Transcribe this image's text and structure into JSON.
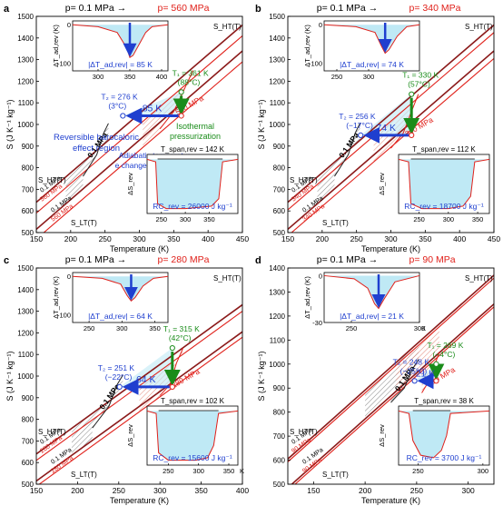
{
  "chart_data": [
    {
      "type": "line",
      "panel_label": "a",
      "title_left": "p= 0.1 MPa →",
      "title_right": "p= 560 MPa",
      "xlabel": "Temperature (K)",
      "ylabel": "S (J K⁻¹ kg⁻¹)",
      "xlim": [
        150,
        450
      ],
      "ylim": [
        500,
        1500
      ],
      "xticks": [
        "150",
        "200",
        "250",
        "300",
        "350",
        "400",
        "450"
      ],
      "yticks": [
        "500",
        "600",
        "700",
        "800",
        "900",
        "1000",
        "1100",
        "1200",
        "1300",
        "1400",
        "1500"
      ],
      "series": [
        {
          "name": "S_HT(T)",
          "pressure": "0.1 MPa",
          "x": [
            150,
            450
          ],
          "y": [
            640,
            1460
          ]
        },
        {
          "name": "S_LT(T)",
          "pressure": "0.1 MPa",
          "x": [
            150,
            450
          ],
          "y": [
            515,
            1340
          ]
        },
        {
          "name": "",
          "pressure": "560 MPa",
          "x": [
            150,
            450
          ],
          "y": [
            590,
            1410
          ]
        },
        {
          "name": "",
          "pressure": "560 MPa",
          "x": [
            150,
            450
          ],
          "y": [
            470,
            1290
          ]
        }
      ],
      "transition_low": {
        "label": "0.1 MPa",
        "x": [
          218,
          238,
          248,
          255
        ],
        "y": [
          760,
          860,
          960,
          1005
        ]
      },
      "transition_high": {
        "label": "560 MPa",
        "x": [
          330,
          350,
          365,
          378
        ],
        "y": [
          980,
          1060,
          1160,
          1250
        ]
      },
      "labels": {
        "region": "Reversible barocaloric effect region",
        "adiabatic": "Adiabatic temperature change (|ΔT_ad,rev|)",
        "isothermal": "Isothermal pressurization",
        "hot_label": "S_HT(T)",
        "cold_label": "S_LT(T)"
      },
      "points": {
        "T1": {
          "x": 361,
          "y": 1150,
          "label": "T₁ = 361 K",
          "sub": "(88°C)"
        },
        "T2": {
          "x": 276,
          "y": 1040,
          "label": "T₂ = 276 K",
          "sub": "(3°C)"
        },
        "base": {
          "x": 361,
          "y": 1040
        }
      },
      "arrow_label": "85 K",
      "inset_top": {
        "ylabel": "ΔT_ad,rev (K)",
        "yticks": [
          "0",
          "-100"
        ],
        "ylim": [
          -120,
          10
        ],
        "xticks": [
          "300",
          "350",
          "400"
        ],
        "xlim": [
          260,
          410
        ],
        "x": [
          260,
          300,
          330,
          345,
          350,
          355,
          365,
          375,
          385,
          410
        ],
        "y": [
          0,
          -5,
          -20,
          -60,
          -85,
          -80,
          -50,
          -20,
          -5,
          0
        ],
        "annotation": "|ΔT_ad,rev| = 85 K"
      },
      "inset_bottom": {
        "ylabel": "ΔS_rev",
        "xticks": [
          "250",
          "300",
          "350"
        ],
        "xlim": [
          220,
          410
        ],
        "x": [
          220,
          238,
          242,
          260,
          300,
          355,
          370,
          378,
          410
        ],
        "y": [
          0,
          -0.05,
          -0.9,
          -1,
          -1,
          -0.95,
          -0.8,
          -0.05,
          0
        ],
        "span": "T_span,rev = 142 K",
        "rc": "RC_rev = 26000 J kg⁻¹"
      }
    },
    {
      "type": "line",
      "panel_label": "b",
      "title_left": "p= 0.1 MPa →",
      "title_right": "p= 340 MPa",
      "xlabel": "Temperature (K)",
      "ylabel": "S (J K⁻¹ kg⁻¹)",
      "xlim": [
        150,
        450
      ],
      "ylim": [
        500,
        1500
      ],
      "xticks": [
        "150",
        "200",
        "250",
        "300",
        "350",
        "400",
        "450"
      ],
      "yticks": [
        "500",
        "600",
        "700",
        "800",
        "900",
        "1000",
        "1100",
        "1200",
        "1300",
        "1400",
        "1500"
      ],
      "series": [
        {
          "name": "S_HT(T)",
          "pressure": "0.1 MPa",
          "x": [
            150,
            450
          ],
          "y": [
            640,
            1460
          ]
        },
        {
          "name": "S_LT(T)",
          "pressure": "0.1 MPa",
          "x": [
            150,
            450
          ],
          "y": [
            515,
            1340
          ]
        },
        {
          "name": "",
          "pressure": "340 MPa",
          "x": [
            150,
            450
          ],
          "y": [
            605,
            1425
          ]
        },
        {
          "name": "",
          "pressure": "340 MPa",
          "x": [
            150,
            450
          ],
          "y": [
            485,
            1305
          ]
        }
      ],
      "transition_low": {
        "label": "0.1 MPa",
        "x": [
          218,
          238,
          248,
          255
        ],
        "y": [
          760,
          860,
          960,
          1005
        ]
      },
      "transition_high": {
        "label": "340 MPa",
        "x": [
          300,
          318,
          330,
          340
        ],
        "y": [
          890,
          960,
          1060,
          1140
        ]
      },
      "labels": {
        "hot_label": "S_HT(T)",
        "cold_label": "S_LT(T)"
      },
      "points": {
        "T1": {
          "x": 330,
          "y": 1140,
          "label": "T₁ = 330 K",
          "sub": "(57°C)"
        },
        "T2": {
          "x": 256,
          "y": 950,
          "label": "T₂ = 256 K",
          "sub": "(−17°C)"
        },
        "base": {
          "x": 330,
          "y": 950
        }
      },
      "arrow_label": "74 K",
      "inset_top": {
        "ylabel": "ΔT_ad,rev (K)",
        "yticks": [
          "0",
          "-100"
        ],
        "ylim": [
          -120,
          10
        ],
        "xticks": [
          "250",
          "300"
        ],
        "xlim": [
          230,
          380
        ],
        "x": [
          230,
          280,
          310,
          320,
          326,
          332,
          345,
          360,
          380
        ],
        "y": [
          0,
          -5,
          -20,
          -55,
          -74,
          -65,
          -30,
          -5,
          0
        ],
        "annotation": "|ΔT_ad,rev| = 74 K"
      },
      "inset_bottom": {
        "ylabel": "ΔS_rev",
        "xticks": [
          "250",
          "300",
          "350"
        ],
        "xlim": [
          215,
          370
        ],
        "x": [
          215,
          232,
          236,
          255,
          300,
          325,
          338,
          345,
          370
        ],
        "y": [
          0,
          -0.05,
          -0.9,
          -1,
          -1,
          -0.95,
          -0.75,
          -0.05,
          0
        ],
        "span": "T_span,rev = 112 K",
        "rc": "RC_rev = 18700 J kg⁻¹"
      }
    },
    {
      "type": "line",
      "panel_label": "c",
      "title_left": "p= 0.1 MPa →",
      "title_right": "p= 280 MPa",
      "xlabel": "Temperature (K)",
      "ylabel": "S (J K⁻¹ kg⁻¹)",
      "xlim": [
        150,
        400
      ],
      "ylim": [
        500,
        1500
      ],
      "xticks": [
        "150",
        "200",
        "250",
        "300",
        "350",
        "400"
      ],
      "yticks": [
        "500",
        "600",
        "700",
        "800",
        "900",
        "1000",
        "1100",
        "1200",
        "1300",
        "1400",
        "1500"
      ],
      "series": [
        {
          "name": "S_HT(T)",
          "pressure": "0.1 MPa",
          "x": [
            150,
            400
          ],
          "y": [
            640,
            1330
          ]
        },
        {
          "name": "S_LT(T)",
          "pressure": "0.1 MPa",
          "x": [
            150,
            400
          ],
          "y": [
            515,
            1205
          ]
        },
        {
          "name": "",
          "pressure": "280 MPa",
          "x": [
            150,
            400
          ],
          "y": [
            610,
            1300
          ]
        },
        {
          "name": "",
          "pressure": "280 MPa",
          "x": [
            150,
            400
          ],
          "y": [
            490,
            1180
          ]
        }
      ],
      "transition_low": {
        "label": "0.1 MPa",
        "x": [
          218,
          238,
          248,
          255
        ],
        "y": [
          760,
          860,
          960,
          1005
        ]
      },
      "transition_high": {
        "label": "280 MPa",
        "x": [
          300,
          312,
          320,
          328
        ],
        "y": [
          910,
          960,
          1060,
          1130
        ]
      },
      "labels": {
        "hot_label": "S_HT(T)",
        "cold_label": "S_LT(T)"
      },
      "points": {
        "T1": {
          "x": 315,
          "y": 1130,
          "label": "T₁ = 315 K",
          "sub": "(42°C)"
        },
        "T2": {
          "x": 251,
          "y": 950,
          "label": "T₂ = 251 K",
          "sub": "(−22°C)"
        },
        "base": {
          "x": 315,
          "y": 950
        }
      },
      "arrow_label": "64 K",
      "inset_top": {
        "ylabel": "ΔT_ad,rev (K)",
        "yticks": [
          "0",
          "-100"
        ],
        "ylim": [
          -120,
          10
        ],
        "xticks": [
          "250",
          "300",
          "350"
        ],
        "xlim": [
          225,
          370
        ],
        "x": [
          225,
          270,
          298,
          308,
          314,
          320,
          332,
          348,
          370
        ],
        "y": [
          0,
          -5,
          -20,
          -50,
          -64,
          -55,
          -25,
          -5,
          0
        ],
        "annotation": "|ΔT_ad,rev| = 64 K"
      },
      "inset_bottom": {
        "ylabel": "ΔS_rev",
        "xticks": [
          "250",
          "300",
          "350"
        ],
        "xunit": "K",
        "xlim": [
          215,
          365
        ],
        "x": [
          215,
          230,
          234,
          250,
          295,
          315,
          325,
          333,
          365
        ],
        "y": [
          0,
          -0.05,
          -0.85,
          -1,
          -1,
          -0.95,
          -0.7,
          -0.05,
          0
        ],
        "span": "T_span,rev = 102 K",
        "rc": "RC_rev = 15600 J kg⁻¹"
      }
    },
    {
      "type": "line",
      "panel_label": "d",
      "title_left": "p= 0.1 MPa →",
      "title_right": "p= 90 MPa",
      "xlabel": "Temperature (K)",
      "ylabel": "S (J K⁻¹ kg⁻¹)",
      "xlim": [
        125,
        325
      ],
      "ylim": [
        500,
        1400
      ],
      "xticks": [
        "150",
        "200",
        "250",
        "300"
      ],
      "yticks": [
        "500",
        "600",
        "700",
        "800",
        "900",
        "1000",
        "1100",
        "1200",
        "1300",
        "1400"
      ],
      "series": [
        {
          "name": "S_HT(T)",
          "pressure": "0.1 MPa",
          "x": [
            125,
            325
          ],
          "y": [
            605,
            1370
          ]
        },
        {
          "name": "S_LT(T)",
          "pressure": "0.1 MPa",
          "x": [
            125,
            325
          ],
          "y": [
            485,
            1250
          ]
        },
        {
          "name": "",
          "pressure": "90 MPa",
          "x": [
            125,
            325
          ],
          "y": [
            593,
            1358
          ]
        },
        {
          "name": "",
          "pressure": "90 MPa",
          "x": [
            125,
            325
          ],
          "y": [
            473,
            1238
          ]
        }
      ],
      "transition_low": {
        "label": "0.1 MPa",
        "x": [
          225,
          238,
          246,
          252
        ],
        "y": [
          840,
          900,
          980,
          1020
        ]
      },
      "transition_high": {
        "label": "90 MPa",
        "x": [
          255,
          262,
          267,
          272
        ],
        "y": [
          880,
          930,
          990,
          1050
        ]
      },
      "labels": {
        "hot_label": "S_HT(T)",
        "cold_label": "S_LT(T)"
      },
      "points": {
        "T1": {
          "x": 269,
          "y": 1000,
          "label": "T₁ = 269 K",
          "sub": "(−4°C)"
        },
        "T2": {
          "x": 248,
          "y": 930,
          "label": "T₂ = 248 K",
          "sub": "(−25°C)"
        },
        "base": {
          "x": 269,
          "y": 930
        }
      },
      "arrow_label": "21 K",
      "inset_top": {
        "ylabel": "ΔT_ad,rev (K)",
        "yticks": [
          "0",
          "-30"
        ],
        "ylim": [
          -30,
          2
        ],
        "xticks": [
          "250",
          "300"
        ],
        "xunit": "K",
        "xlim": [
          230,
          300
        ],
        "x": [
          230,
          252,
          262,
          267,
          270,
          274,
          282,
          300
        ],
        "y": [
          0,
          -2,
          -8,
          -18,
          -21,
          -15,
          -4,
          0
        ],
        "annotation": "|ΔT_ad,rev| = 21 K"
      },
      "inset_bottom": {
        "ylabel": "ΔS_rev",
        "xticks": [
          "250",
          "300"
        ],
        "xlim": [
          235,
          305
        ],
        "x": [
          235,
          243,
          246,
          252,
          262,
          268,
          272,
          275,
          305
        ],
        "y": [
          0,
          -0.05,
          -0.6,
          -0.9,
          -0.95,
          -0.8,
          -0.5,
          -0.05,
          0
        ],
        "span": "T_span,rev = 38 K",
        "rc": "RC_rev = 3700 J kg⁻¹"
      }
    }
  ]
}
